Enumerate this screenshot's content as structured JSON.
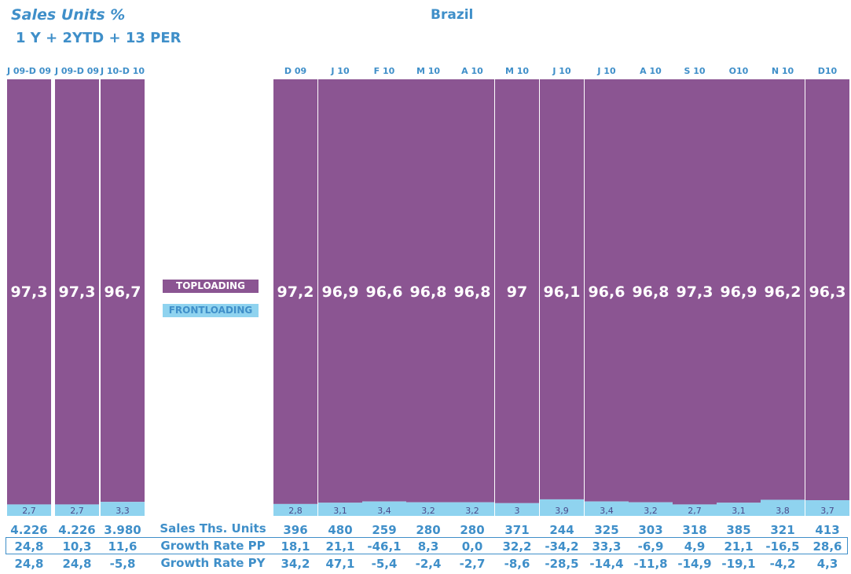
{
  "header": {
    "title": "Sales Units %",
    "subtitle": "1 Y + 2YTD + 13 PER",
    "country": "Brazil"
  },
  "legend": {
    "toploading": "TOPLOADING",
    "frontloading": "FRONTLOADING"
  },
  "colors": {
    "toploading": "#8b5592",
    "frontloading": "#8fd3ef",
    "text_accent": "#3f8fc9"
  },
  "rows": {
    "sales_label": "Sales Ths. Units",
    "growth_pp_label": "Growth Rate PP",
    "growth_py_label": "Growth Rate PY"
  },
  "chart_data": {
    "type": "bar",
    "stacked": true,
    "percent": true,
    "categories": [
      "J 09-D 09",
      "J 09-D 09",
      "J 10-D 10",
      "D 09",
      "J 10",
      "F 10",
      "M 10",
      "A 10",
      "M 10",
      "J 10",
      "J 10",
      "A 10",
      "S 10",
      "O10",
      "N 10",
      "D10"
    ],
    "series": [
      {
        "name": "TOPLOADING",
        "values": [
          "97,3",
          "97,3",
          "96,7",
          "97,2",
          "96,9",
          "96,6",
          "96,8",
          "96,8",
          "97",
          "96,1",
          "96,6",
          "96,8",
          "97,3",
          "96,9",
          "96,2",
          "96,3"
        ]
      },
      {
        "name": "FRONTLOADING",
        "values": [
          "2,7",
          "2,7",
          "3,3",
          "2,8",
          "3,1",
          "3,4",
          "3,2",
          "3,2",
          "3",
          "3,9",
          "3,4",
          "3,2",
          "2,7",
          "3,1",
          "3,8",
          "3,7"
        ]
      }
    ],
    "table": {
      "sales_ths_units": [
        "4.226",
        "4.226",
        "3.980",
        "396",
        "480",
        "259",
        "280",
        "280",
        "371",
        "244",
        "325",
        "303",
        "318",
        "385",
        "321",
        "413"
      ],
      "growth_rate_pp": [
        "24,8",
        "10,3",
        "11,6",
        "18,1",
        "21,1",
        "-46,1",
        "8,3",
        "0,0",
        "32,2",
        "-34,2",
        "33,3",
        "-6,9",
        "4,9",
        "21,1",
        "-16,5",
        "28,6"
      ],
      "growth_rate_py": [
        "24,8",
        "24,8",
        "-5,8",
        "34,2",
        "47,1",
        "-5,4",
        "-2,4",
        "-2,7",
        "-8,6",
        "-28,5",
        "-14,4",
        "-11,8",
        "-14,9",
        "-19,1",
        "-4,2",
        "4,3"
      ]
    },
    "ylim": [
      0,
      100
    ],
    "grid": false
  }
}
